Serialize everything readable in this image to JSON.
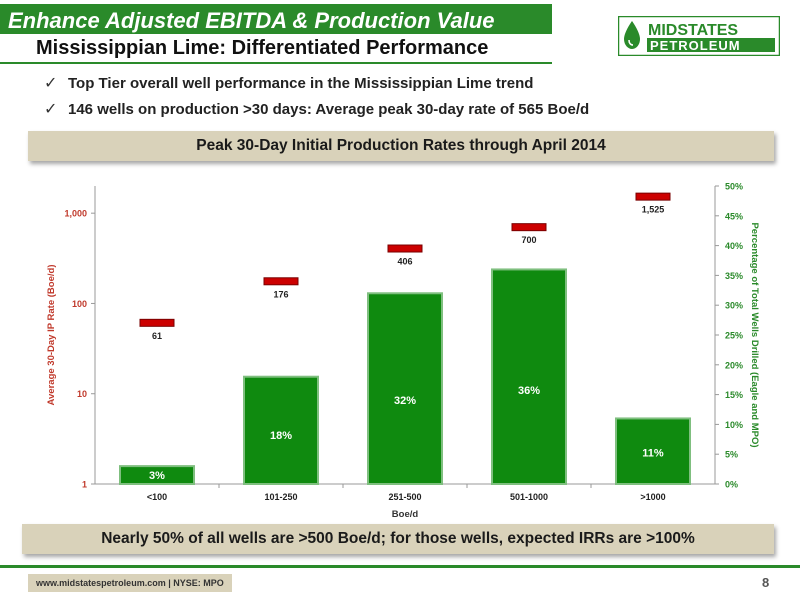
{
  "header": {
    "title": "Enhance Adjusted EBITDA & Production Value",
    "subtitle": "Mississippian Lime: Differentiated Performance",
    "logo_top": "MIDSTATES",
    "logo_bottom": "PETROLEUM"
  },
  "bullets": [
    {
      "check": "✓",
      "text": "Top Tier overall well performance in the Mississippian Lime trend"
    },
    {
      "check": "✓",
      "text": "146 wells on production >30 days: Average peak 30-day rate of 565 Boe/d"
    }
  ],
  "chart_banner": "Peak 30-Day Initial Production Rates through  April 2014",
  "bottom_banner": "Nearly 50% of all wells are >500 Boe/d; for those wells, expected IRRs are >100%",
  "footer": {
    "text": "www.midstatespetroleum.com | NYSE: MPO",
    "page": "8"
  },
  "colors": {
    "green": "#0f8a0f",
    "red": "#cc0000",
    "axis_red": "#c0392b",
    "axis_green": "#2a8a2a"
  },
  "chart_data": {
    "type": "bar",
    "categories": [
      "<100",
      "101-250",
      "251-500",
      "501-1000",
      ">1000"
    ],
    "xlabel": "Boe/d",
    "ylabel": "Average 30-Day IP Rate (Boe/d)",
    "y2label": "Percentage of Total Wells Drilled (Eagle and MPO)",
    "y_scale": "log",
    "ylim": [
      1,
      2000
    ],
    "y_ticks": [
      1,
      10,
      100,
      1000
    ],
    "y_tick_labels": [
      "1",
      "10",
      "100",
      "1,000"
    ],
    "y2lim": [
      0,
      50
    ],
    "y2_ticks": [
      0,
      5,
      10,
      15,
      20,
      25,
      30,
      35,
      40,
      45,
      50
    ],
    "y2_tick_labels": [
      "0%",
      "5%",
      "10%",
      "15%",
      "20%",
      "25%",
      "30%",
      "35%",
      "40%",
      "45%",
      "50%"
    ],
    "series": [
      {
        "type": "bar",
        "axis": "y2",
        "values": [
          3,
          18,
          32,
          36,
          11
        ],
        "labels": [
          "3%",
          "18%",
          "32%",
          "36%",
          "11%"
        ]
      },
      {
        "type": "marker",
        "axis": "y",
        "values": [
          61,
          176,
          406,
          700,
          1525
        ],
        "labels": [
          "61",
          "176",
          "406",
          "700",
          "1,525"
        ]
      }
    ]
  }
}
